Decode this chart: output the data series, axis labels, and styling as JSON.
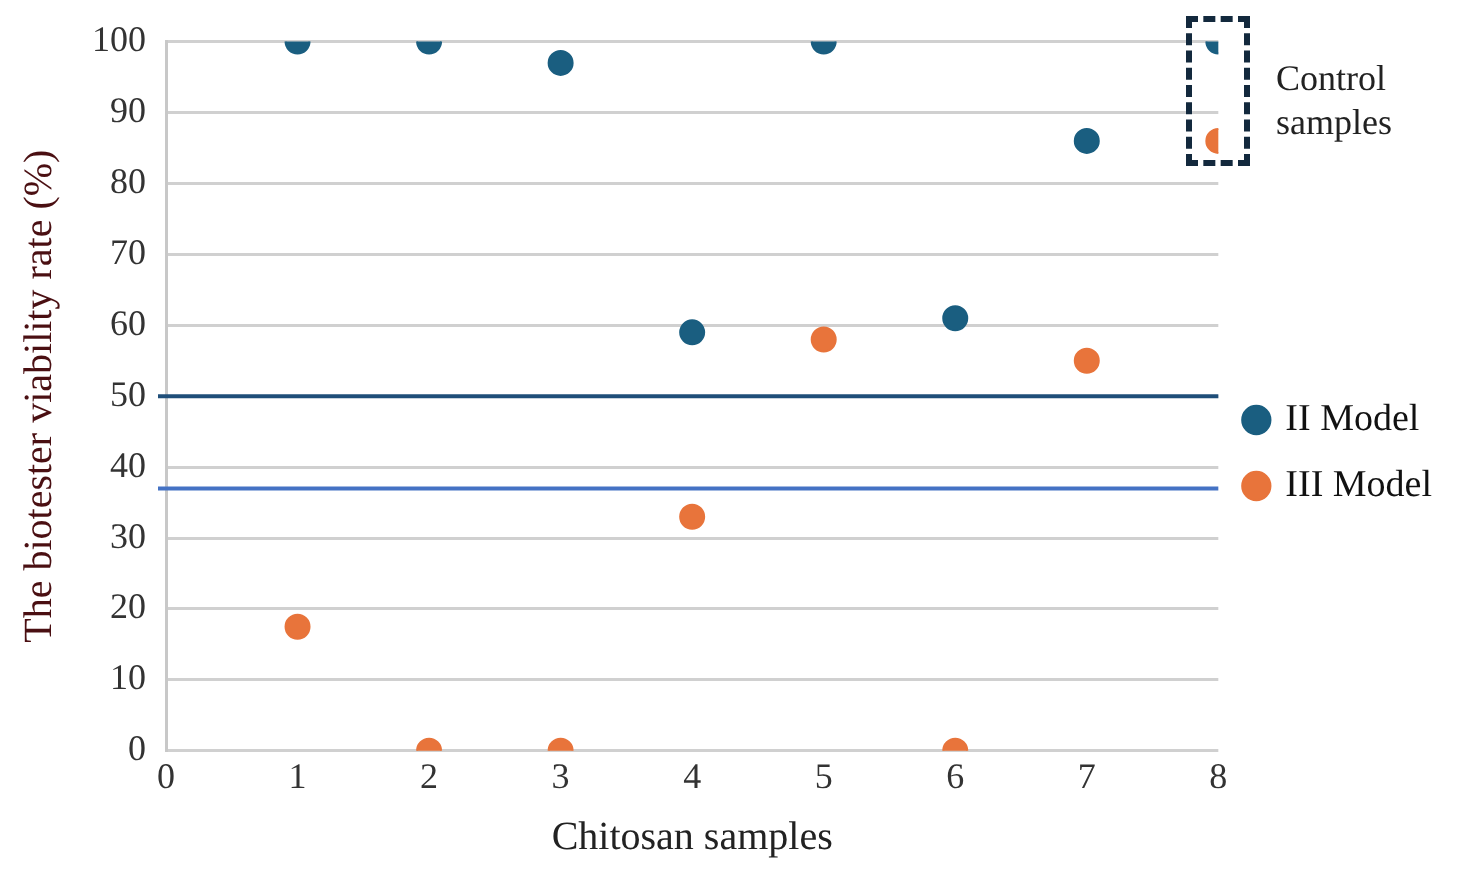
{
  "chart_data": {
    "type": "scatter",
    "xlabel": "Chitosan samples",
    "ylabel": "The biotester viability rate (%)",
    "xlim": [
      0,
      8
    ],
    "xticks": [
      0,
      1,
      2,
      3,
      4,
      5,
      6,
      7,
      8
    ],
    "ylim": [
      0,
      100
    ],
    "yticks": [
      0,
      10,
      20,
      30,
      40,
      50,
      60,
      70,
      80,
      90,
      100
    ],
    "grid": "y",
    "legend": "right",
    "marker": "circle",
    "series": [
      {
        "name": "II Model",
        "color": "#1a5e80",
        "x": [
          1,
          2,
          3,
          4,
          5,
          6,
          7,
          8
        ],
        "values": [
          100,
          100,
          97,
          59,
          100,
          61,
          86,
          100
        ]
      },
      {
        "name": "III Model",
        "color": "#e8743b",
        "x": [
          1,
          2,
          3,
          4,
          5,
          6,
          7,
          8
        ],
        "values": [
          17.5,
          0,
          0,
          33,
          58,
          0,
          55,
          86
        ]
      }
    ],
    "ref_lines": [
      {
        "axis": "y",
        "value": 50,
        "color": "#1f4e79"
      },
      {
        "axis": "y",
        "value": 37,
        "color": "#4472c4"
      }
    ],
    "annotations": [
      "Control samples"
    ]
  }
}
